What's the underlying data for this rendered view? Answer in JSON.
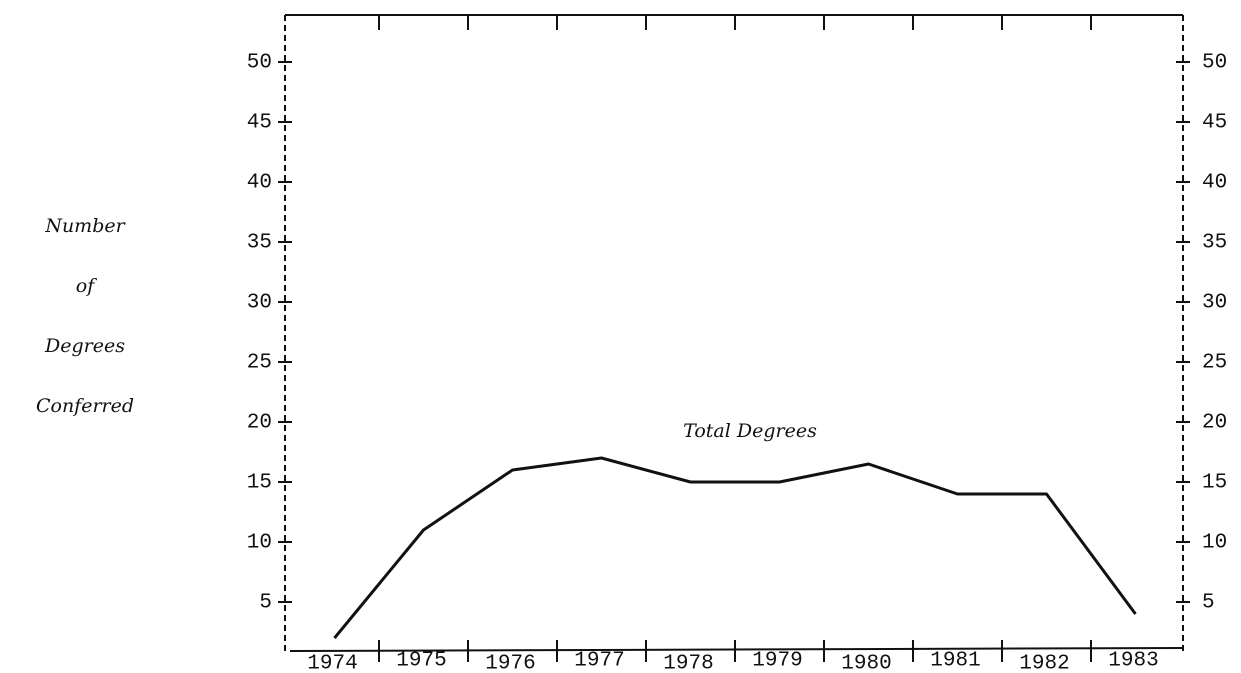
{
  "chart_data": {
    "type": "line",
    "ylabel": [
      "Number",
      "of",
      "Degrees",
      "Conferred"
    ],
    "annotation": "Total Degrees",
    "categories": [
      "1974",
      "1975",
      "1976",
      "1977",
      "1978",
      "1979",
      "1980",
      "1981",
      "1982",
      "1983"
    ],
    "series": [
      {
        "name": "Total Degrees",
        "color": "#111111",
        "values": [
          2,
          11,
          16,
          17,
          15,
          15,
          16.5,
          14,
          14,
          4
        ]
      }
    ],
    "ylim": [
      1,
      54
    ],
    "yticks": [
      5,
      10,
      15,
      20,
      25,
      30,
      35,
      40,
      45,
      50
    ],
    "y2lim": [
      1,
      54
    ],
    "y2ticks": [
      5,
      10,
      15,
      20,
      25,
      30,
      35,
      40,
      45,
      50
    ]
  }
}
